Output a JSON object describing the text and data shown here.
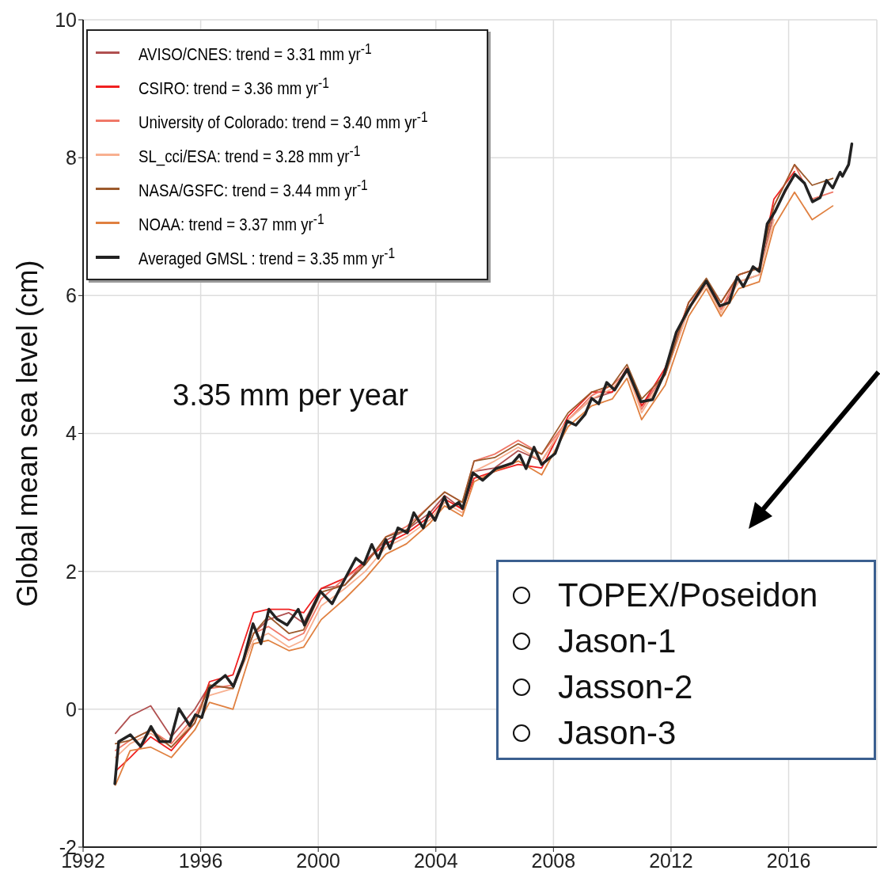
{
  "chart_data": {
    "type": "line",
    "ylabel": "Global mean sea level (cm)",
    "x": [
      1993.1,
      1993.6,
      1994.3,
      1995.0,
      1995.8,
      1996.3,
      1997.1,
      1997.8,
      1998.3,
      1999.0,
      1999.5,
      2000.1,
      2000.9,
      2001.6,
      2002.3,
      2003.0,
      2003.8,
      2004.3,
      2004.9,
      2005.3,
      2006.0,
      2006.8,
      2007.6,
      2008.5,
      2009.3,
      2010.0,
      2010.5,
      2011.0,
      2011.8,
      2012.6,
      2013.2,
      2013.7,
      2014.3,
      2015.0,
      2015.5,
      2016.2,
      2016.8,
      2017.5
    ],
    "series": [
      {
        "name": "AVISO/CNES: trend =  3.31 mm yr$^{-1}$",
        "color": "#b05050",
        "values": [
          -0.35,
          -0.1,
          0.05,
          -0.4,
          0.0,
          0.35,
          0.3,
          1.1,
          1.3,
          1.4,
          1.25,
          1.75,
          1.8,
          2.15,
          2.45,
          2.6,
          2.85,
          3.1,
          2.9,
          3.45,
          3.5,
          3.75,
          3.6,
          4.2,
          4.5,
          4.6,
          4.9,
          4.4,
          4.85,
          5.8,
          6.2,
          5.8,
          6.2,
          6.3,
          7.2,
          7.75,
          null,
          null
        ]
      },
      {
        "name": "CSIRO: trend =  3.36 mm yr$^{-1}$",
        "color": "#f02020",
        "values": [
          -0.9,
          -0.7,
          -0.4,
          -0.6,
          -0.2,
          0.4,
          0.5,
          1.4,
          1.45,
          1.45,
          1.4,
          1.75,
          1.9,
          2.15,
          2.4,
          2.55,
          2.8,
          3.05,
          2.9,
          3.35,
          3.45,
          3.55,
          3.5,
          4.25,
          4.6,
          4.6,
          4.95,
          4.4,
          4.95,
          5.9,
          6.2,
          5.9,
          6.3,
          6.4,
          7.4,
          7.8,
          null,
          null
        ]
      },
      {
        "name": "University of Colorado: trend =  3.40 mm yr$^{-1}$",
        "color": "#f07868",
        "values": [
          -0.6,
          -0.45,
          -0.3,
          -0.5,
          -0.1,
          0.3,
          0.35,
          1.1,
          1.2,
          1.0,
          1.1,
          1.6,
          1.9,
          2.1,
          2.5,
          2.65,
          2.95,
          3.15,
          3.0,
          3.6,
          3.7,
          3.9,
          3.7,
          4.2,
          4.55,
          4.7,
          4.9,
          4.35,
          4.9,
          5.9,
          6.2,
          5.8,
          6.3,
          6.4,
          7.3,
          7.9,
          7.4,
          7.5
        ]
      },
      {
        "name": "SL_cci/ESA: trend =  3.28 mm yr$^{-1}$",
        "color": "#f8b090",
        "values": [
          -0.7,
          -0.5,
          -0.35,
          -0.55,
          -0.15,
          0.2,
          0.3,
          1.0,
          1.1,
          0.9,
          1.0,
          1.5,
          1.75,
          2.0,
          2.35,
          2.5,
          2.75,
          3.0,
          2.85,
          3.45,
          3.6,
          3.8,
          3.6,
          4.2,
          4.5,
          4.65,
          4.9,
          4.3,
          4.85,
          5.8,
          6.15,
          5.75,
          6.2,
          6.3,
          7.1,
          null,
          null,
          null
        ]
      },
      {
        "name": "NASA/GSFC: trend =  3.44 mm yr$^{-1}$",
        "color": "#9c5a2c",
        "values": [
          -0.5,
          -0.45,
          -0.3,
          -0.55,
          -0.2,
          0.35,
          0.3,
          1.1,
          1.35,
          1.1,
          1.15,
          1.7,
          1.8,
          2.1,
          2.5,
          2.6,
          2.95,
          3.15,
          3.0,
          3.6,
          3.65,
          3.85,
          3.7,
          4.3,
          4.6,
          4.7,
          5.0,
          4.5,
          4.85,
          5.9,
          6.25,
          5.9,
          6.3,
          6.4,
          7.3,
          7.9,
          7.6,
          7.7
        ]
      },
      {
        "name": "NOAA: trend =  3.37 mm yr$^{-1}$",
        "color": "#e08040",
        "values": [
          -1.1,
          -0.6,
          -0.55,
          -0.7,
          -0.3,
          0.1,
          0.0,
          0.95,
          1.0,
          0.85,
          0.9,
          1.3,
          1.6,
          1.9,
          2.25,
          2.4,
          2.7,
          2.95,
          2.8,
          3.3,
          3.45,
          3.6,
          3.4,
          4.1,
          4.4,
          4.5,
          4.8,
          4.2,
          4.7,
          5.7,
          6.1,
          5.7,
          6.1,
          6.2,
          7.0,
          7.5,
          7.1,
          7.3
        ]
      },
      {
        "name": "Averaged GMSL : trend =  3.35 mm yr$^{-1}$",
        "color": "#222222",
        "x": [
          1993.08,
          1993.21,
          1993.61,
          1993.96,
          1994.31,
          1994.61,
          1994.96,
          1995.26,
          1995.63,
          1995.82,
          1996.04,
          1996.3,
          1996.84,
          1997.11,
          1997.46,
          1997.78,
          1998.05,
          1998.32,
          1998.59,
          1998.94,
          1999.32,
          1999.53,
          2000.07,
          2000.47,
          2000.88,
          2001.28,
          2001.55,
          2001.82,
          2002.04,
          2002.3,
          2002.44,
          2002.71,
          2003.03,
          2003.25,
          2003.57,
          2003.78,
          2003.97,
          2004.29,
          2004.46,
          2004.78,
          2004.91,
          2005.26,
          2005.59,
          2006.04,
          2006.61,
          2006.85,
          2007.07,
          2007.34,
          2007.6,
          2008.06,
          2008.47,
          2008.76,
          2009.08,
          2009.3,
          2009.54,
          2009.81,
          2010.08,
          2010.51,
          2010.97,
          2011.37,
          2011.77,
          2012.18,
          2012.66,
          2013.2,
          2013.66,
          2013.98,
          2014.25,
          2014.46,
          2014.79,
          2015.0,
          2015.27,
          2015.54,
          2015.89,
          2016.21,
          2016.54,
          2016.81,
          2017.07,
          2017.29,
          2017.5,
          2017.75,
          2017.83,
          2018.04,
          2018.15
        ],
        "values": [
          -1.08,
          -0.47,
          -0.37,
          -0.54,
          -0.25,
          -0.47,
          -0.47,
          0.01,
          -0.24,
          -0.08,
          -0.12,
          0.3,
          0.49,
          0.33,
          0.72,
          1.24,
          0.95,
          1.45,
          1.31,
          1.22,
          1.45,
          1.22,
          1.71,
          1.53,
          1.87,
          2.19,
          2.1,
          2.39,
          2.19,
          2.46,
          2.33,
          2.63,
          2.56,
          2.85,
          2.63,
          2.86,
          2.74,
          3.08,
          2.91,
          3.0,
          2.91,
          3.43,
          3.32,
          3.49,
          3.57,
          3.69,
          3.49,
          3.8,
          3.55,
          3.71,
          4.18,
          4.12,
          4.28,
          4.51,
          4.43,
          4.74,
          4.63,
          4.93,
          4.46,
          4.49,
          4.87,
          5.47,
          5.85,
          6.21,
          5.85,
          5.9,
          6.27,
          6.13,
          6.42,
          6.35,
          7.04,
          7.22,
          7.53,
          7.76,
          7.63,
          7.36,
          7.42,
          7.67,
          7.56,
          7.79,
          7.73,
          7.9,
          8.2
        ]
      }
    ],
    "xlim": [
      1992,
      2019
    ],
    "xticks": [
      1992,
      1996,
      2000,
      2004,
      2008,
      2012,
      2016
    ],
    "ylim": [
      -2,
      10
    ],
    "yticks": [
      -2,
      0,
      2,
      4,
      6,
      8,
      10
    ],
    "grid": true,
    "legend": "top left",
    "marker": "none",
    "line_style": "solid",
    "annotations": [
      "3.35 mm per year",
      "TOPEX/Poseidon",
      "Jason-1",
      "Jasson-2",
      "Jason-3"
    ]
  }
}
